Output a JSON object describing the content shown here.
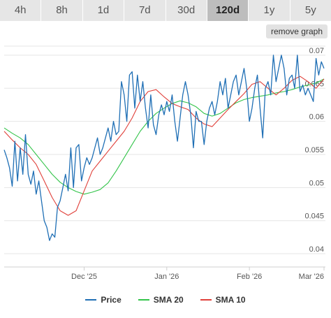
{
  "timeframe_tabs": [
    {
      "label": "4h",
      "active": false
    },
    {
      "label": "8h",
      "active": false
    },
    {
      "label": "1d",
      "active": false
    },
    {
      "label": "7d",
      "active": false
    },
    {
      "label": "30d",
      "active": false
    },
    {
      "label": "120d",
      "active": true
    },
    {
      "label": "1y",
      "active": false
    },
    {
      "label": "5y",
      "active": false
    }
  ],
  "remove_graph_label": "remove graph",
  "colors": {
    "price": "#1f6fb5",
    "sma20": "#33c44a",
    "sma10": "#e0403a",
    "grid": "#e6e6e6",
    "tab_active_bg": "#bdbdbd",
    "tab_bg": "#e6e6e6"
  },
  "chart_data": {
    "type": "line",
    "title": "",
    "xlabel": "",
    "ylabel": "",
    "x_ticks": [
      "Dec '25",
      "Jan '26",
      "Feb '26",
      "Mar '26"
    ],
    "x_tick_dates": [
      "2025-12-01",
      "2026-01-01",
      "2026-02-01",
      "2026-03-01"
    ],
    "x_range": [
      "2025-11-01",
      "2026-03-01"
    ],
    "y_ticks": [
      "0.04",
      "0.045",
      "0.05",
      "0.055",
      "0.06",
      "0.065",
      "0.07"
    ],
    "y_tick_values": [
      0.04,
      0.045,
      0.05,
      0.055,
      0.06,
      0.065,
      0.07
    ],
    "ylim": [
      0.038,
      0.072
    ],
    "grid": "horizontal",
    "legend": "bottom-center",
    "series": [
      {
        "name": "Price",
        "color_key": "price",
        "points": [
          [
            "2025-11-01",
            0.0557
          ],
          [
            "2025-11-02",
            0.0545
          ],
          [
            "2025-11-03",
            0.053
          ],
          [
            "2025-11-04",
            0.0502
          ],
          [
            "2025-11-05",
            0.057
          ],
          [
            "2025-11-06",
            0.051
          ],
          [
            "2025-11-07",
            0.056
          ],
          [
            "2025-11-08",
            0.052
          ],
          [
            "2025-11-09",
            0.058
          ],
          [
            "2025-11-10",
            0.052
          ],
          [
            "2025-11-11",
            0.0505
          ],
          [
            "2025-11-12",
            0.0525
          ],
          [
            "2025-11-13",
            0.049
          ],
          [
            "2025-11-14",
            0.051
          ],
          [
            "2025-11-15",
            0.048
          ],
          [
            "2025-11-16",
            0.045
          ],
          [
            "2025-11-17",
            0.044
          ],
          [
            "2025-11-18",
            0.042
          ],
          [
            "2025-11-19",
            0.043
          ],
          [
            "2025-11-20",
            0.0425
          ],
          [
            "2025-11-21",
            0.047
          ],
          [
            "2025-11-22",
            0.048
          ],
          [
            "2025-11-23",
            0.05
          ],
          [
            "2025-11-24",
            0.052
          ],
          [
            "2025-11-25",
            0.0495
          ],
          [
            "2025-11-26",
            0.056
          ],
          [
            "2025-11-27",
            0.05
          ],
          [
            "2025-11-28",
            0.056
          ],
          [
            "2025-11-29",
            0.0565
          ],
          [
            "2025-11-30",
            0.051
          ],
          [
            "2025-12-01",
            0.053
          ],
          [
            "2025-12-02",
            0.0545
          ],
          [
            "2025-12-03",
            0.0535
          ],
          [
            "2025-12-04",
            0.0545
          ],
          [
            "2025-12-05",
            0.056
          ],
          [
            "2025-12-06",
            0.0575
          ],
          [
            "2025-12-07",
            0.055
          ],
          [
            "2025-12-08",
            0.056
          ],
          [
            "2025-12-09",
            0.0575
          ],
          [
            "2025-12-10",
            0.059
          ],
          [
            "2025-12-11",
            0.057
          ],
          [
            "2025-12-12",
            0.06
          ],
          [
            "2025-12-13",
            0.058
          ],
          [
            "2025-12-14",
            0.0585
          ],
          [
            "2025-12-15",
            0.066
          ],
          [
            "2025-12-16",
            0.064
          ],
          [
            "2025-12-17",
            0.06
          ],
          [
            "2025-12-18",
            0.067
          ],
          [
            "2025-12-19",
            0.0675
          ],
          [
            "2025-12-20",
            0.062
          ],
          [
            "2025-12-21",
            0.067
          ],
          [
            "2025-12-22",
            0.063
          ],
          [
            "2025-12-23",
            0.066
          ],
          [
            "2025-12-24",
            0.062
          ],
          [
            "2025-12-25",
            0.059
          ],
          [
            "2025-12-26",
            0.064
          ],
          [
            "2025-12-27",
            0.0595
          ],
          [
            "2025-12-28",
            0.058
          ],
          [
            "2025-12-29",
            0.061
          ],
          [
            "2025-12-30",
            0.0625
          ],
          [
            "2025-12-31",
            0.061
          ],
          [
            "2026-01-01",
            0.063
          ],
          [
            "2026-01-02",
            0.0615
          ],
          [
            "2026-01-03",
            0.064
          ],
          [
            "2026-01-04",
            0.06
          ],
          [
            "2026-01-05",
            0.057
          ],
          [
            "2026-01-06",
            0.0605
          ],
          [
            "2026-01-07",
            0.064
          ],
          [
            "2026-01-08",
            0.066
          ],
          [
            "2026-01-09",
            0.064
          ],
          [
            "2026-01-10",
            0.061
          ],
          [
            "2026-01-11",
            0.056
          ],
          [
            "2026-01-12",
            0.0615
          ],
          [
            "2026-01-13",
            0.06
          ],
          [
            "2026-01-14",
            0.06
          ],
          [
            "2026-01-15",
            0.0565
          ],
          [
            "2026-01-16",
            0.06
          ],
          [
            "2026-01-17",
            0.062
          ],
          [
            "2026-01-18",
            0.063
          ],
          [
            "2026-01-19",
            0.061
          ],
          [
            "2026-01-20",
            0.063
          ],
          [
            "2026-01-21",
            0.066
          ],
          [
            "2026-01-22",
            0.064
          ],
          [
            "2026-01-23",
            0.0665
          ],
          [
            "2026-01-24",
            0.062
          ],
          [
            "2026-01-25",
            0.064
          ],
          [
            "2026-01-26",
            0.066
          ],
          [
            "2026-01-27",
            0.067
          ],
          [
            "2026-01-28",
            0.064
          ],
          [
            "2026-01-29",
            0.066
          ],
          [
            "2026-01-30",
            0.068
          ],
          [
            "2026-01-31",
            0.065
          ],
          [
            "2026-02-01",
            0.06
          ],
          [
            "2026-02-02",
            0.062
          ],
          [
            "2026-02-03",
            0.065
          ],
          [
            "2026-02-04",
            0.067
          ],
          [
            "2026-02-05",
            0.062
          ],
          [
            "2026-02-06",
            0.0575
          ],
          [
            "2026-02-07",
            0.065
          ],
          [
            "2026-02-08",
            0.066
          ],
          [
            "2026-02-09",
            0.064
          ],
          [
            "2026-02-10",
            0.07
          ],
          [
            "2026-02-11",
            0.066
          ],
          [
            "2026-02-12",
            0.068
          ],
          [
            "2026-02-13",
            0.07
          ],
          [
            "2026-02-14",
            0.068
          ],
          [
            "2026-02-15",
            0.064
          ],
          [
            "2026-02-16",
            0.0665
          ],
          [
            "2026-02-17",
            0.067
          ],
          [
            "2026-02-18",
            0.065
          ],
          [
            "2026-02-19",
            0.07
          ],
          [
            "2026-02-20",
            0.0645
          ],
          [
            "2026-02-21",
            0.0655
          ],
          [
            "2026-02-22",
            0.064
          ],
          [
            "2026-02-23",
            0.065
          ],
          [
            "2026-02-24",
            0.064
          ],
          [
            "2026-02-25",
            0.063
          ],
          [
            "2026-02-26",
            0.0695
          ],
          [
            "2026-02-27",
            0.067
          ],
          [
            "2026-02-28",
            0.069
          ],
          [
            "2026-03-01",
            0.068
          ]
        ]
      },
      {
        "name": "SMA 20",
        "color_key": "sma20",
        "points": [
          [
            "2025-11-01",
            0.059
          ],
          [
            "2025-11-04",
            0.0582
          ],
          [
            "2025-11-07",
            0.0575
          ],
          [
            "2025-11-10",
            0.0565
          ],
          [
            "2025-11-13",
            0.055
          ],
          [
            "2025-11-16",
            0.0535
          ],
          [
            "2025-11-19",
            0.052
          ],
          [
            "2025-11-22",
            0.0508
          ],
          [
            "2025-11-25",
            0.05
          ],
          [
            "2025-11-28",
            0.0494
          ],
          [
            "2025-12-01",
            0.049
          ],
          [
            "2025-12-04",
            0.0493
          ],
          [
            "2025-12-07",
            0.0497
          ],
          [
            "2025-12-10",
            0.0507
          ],
          [
            "2025-12-13",
            0.0525
          ],
          [
            "2025-12-16",
            0.0545
          ],
          [
            "2025-12-19",
            0.0565
          ],
          [
            "2025-12-22",
            0.0585
          ],
          [
            "2025-12-25",
            0.06
          ],
          [
            "2025-12-28",
            0.0612
          ],
          [
            "2025-12-31",
            0.062
          ],
          [
            "2026-01-03",
            0.0627
          ],
          [
            "2026-01-06",
            0.0631
          ],
          [
            "2026-01-09",
            0.0628
          ],
          [
            "2026-01-12",
            0.0622
          ],
          [
            "2026-01-15",
            0.0612
          ],
          [
            "2026-01-18",
            0.0608
          ],
          [
            "2026-01-21",
            0.0612
          ],
          [
            "2026-01-24",
            0.062
          ],
          [
            "2026-01-27",
            0.0628
          ],
          [
            "2026-01-30",
            0.0633
          ],
          [
            "2026-02-02",
            0.0636
          ],
          [
            "2026-02-05",
            0.0638
          ],
          [
            "2026-02-08",
            0.064
          ],
          [
            "2026-02-11",
            0.0643
          ],
          [
            "2026-02-14",
            0.0645
          ],
          [
            "2026-02-17",
            0.0648
          ],
          [
            "2026-02-20",
            0.0652
          ],
          [
            "2026-02-23",
            0.0655
          ],
          [
            "2026-02-26",
            0.0658
          ],
          [
            "2026-03-01",
            0.0664
          ]
        ]
      },
      {
        "name": "SMA 10",
        "color_key": "sma10",
        "points": [
          [
            "2025-11-01",
            0.0585
          ],
          [
            "2025-11-04",
            0.0572
          ],
          [
            "2025-11-07",
            0.056
          ],
          [
            "2025-11-10",
            0.055
          ],
          [
            "2025-11-13",
            0.0535
          ],
          [
            "2025-11-16",
            0.051
          ],
          [
            "2025-11-19",
            0.0485
          ],
          [
            "2025-11-22",
            0.0465
          ],
          [
            "2025-11-25",
            0.0458
          ],
          [
            "2025-11-28",
            0.0465
          ],
          [
            "2025-12-01",
            0.0495
          ],
          [
            "2025-12-04",
            0.0525
          ],
          [
            "2025-12-07",
            0.054
          ],
          [
            "2025-12-10",
            0.0555
          ],
          [
            "2025-12-13",
            0.057
          ],
          [
            "2025-12-16",
            0.0585
          ],
          [
            "2025-12-19",
            0.0605
          ],
          [
            "2025-12-22",
            0.063
          ],
          [
            "2025-12-25",
            0.0645
          ],
          [
            "2025-12-28",
            0.0648
          ],
          [
            "2025-12-31",
            0.0637
          ],
          [
            "2026-01-03",
            0.0627
          ],
          [
            "2026-01-06",
            0.0622
          ],
          [
            "2026-01-09",
            0.0618
          ],
          [
            "2026-01-12",
            0.0605
          ],
          [
            "2026-01-15",
            0.0596
          ],
          [
            "2026-01-18",
            0.0592
          ],
          [
            "2026-01-21",
            0.0605
          ],
          [
            "2026-01-24",
            0.0618
          ],
          [
            "2026-01-27",
            0.063
          ],
          [
            "2026-01-30",
            0.0642
          ],
          [
            "2026-02-02",
            0.0656
          ],
          [
            "2026-02-05",
            0.066
          ],
          [
            "2026-02-08",
            0.065
          ],
          [
            "2026-02-11",
            0.064
          ],
          [
            "2026-02-14",
            0.065
          ],
          [
            "2026-02-17",
            0.0662
          ],
          [
            "2026-02-20",
            0.0668
          ],
          [
            "2026-02-23",
            0.066
          ],
          [
            "2026-02-26",
            0.065
          ],
          [
            "2026-03-01",
            0.0664
          ]
        ]
      }
    ]
  }
}
